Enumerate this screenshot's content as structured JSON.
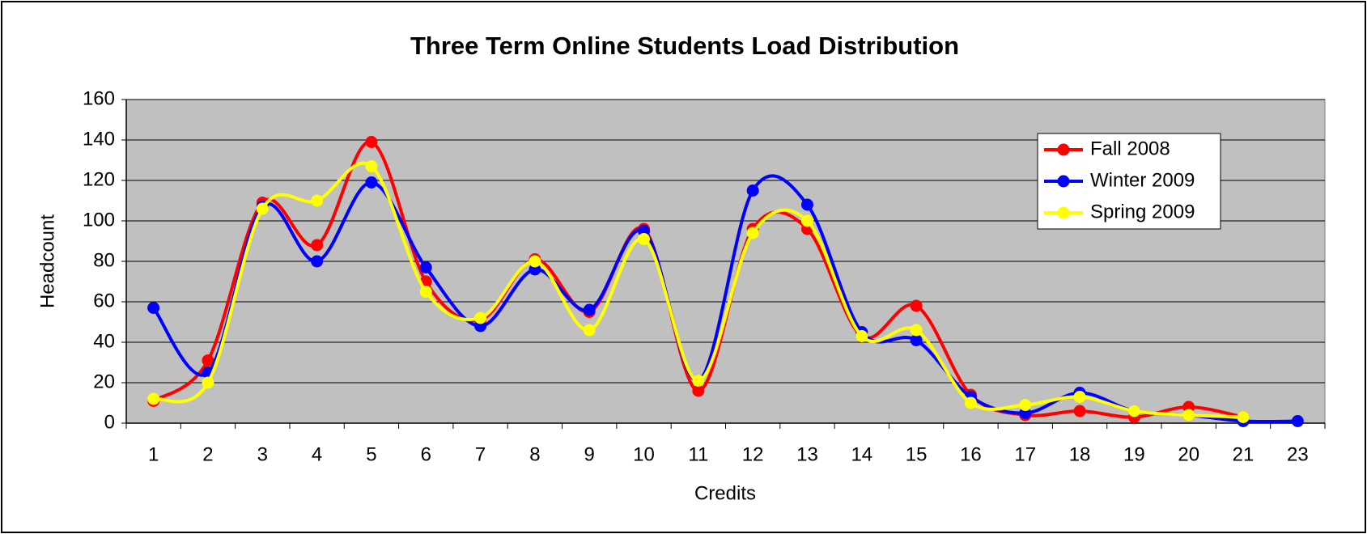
{
  "chart_data": {
    "type": "line",
    "title": "Three Term Online Students Load Distribution",
    "xlabel": "Credits",
    "ylabel": "Headcount",
    "categories": [
      "1",
      "2",
      "3",
      "4",
      "5",
      "6",
      "7",
      "8",
      "9",
      "10",
      "11",
      "12",
      "13",
      "14",
      "15",
      "16",
      "17",
      "18",
      "19",
      "20",
      "21",
      "23"
    ],
    "series": [
      {
        "name": "Fall 2008",
        "color": "#ff0000",
        "values": [
          11,
          31,
          109,
          88,
          139,
          70,
          51,
          81,
          55,
          96,
          16,
          96,
          96,
          43,
          58,
          14,
          4,
          6,
          3,
          8,
          3,
          null
        ]
      },
      {
        "name": "Winter 2009",
        "color": "#0000ff",
        "values": [
          57,
          25,
          107,
          80,
          119,
          77,
          48,
          76,
          56,
          95,
          21,
          115,
          108,
          45,
          41,
          13,
          5,
          15,
          6,
          4,
          1,
          1
        ]
      },
      {
        "name": "Spring 2009",
        "color": "#ffff00",
        "values": [
          12,
          20,
          106,
          110,
          127,
          65,
          52,
          80,
          46,
          91,
          21,
          94,
          100,
          43,
          46,
          10,
          9,
          13,
          6,
          4,
          3,
          null
        ]
      }
    ],
    "ylim": [
      0,
      160
    ],
    "yticks": [
      0,
      20,
      40,
      60,
      80,
      100,
      120,
      140,
      160
    ],
    "grid": true,
    "smooth": true,
    "legend": "upper right"
  }
}
